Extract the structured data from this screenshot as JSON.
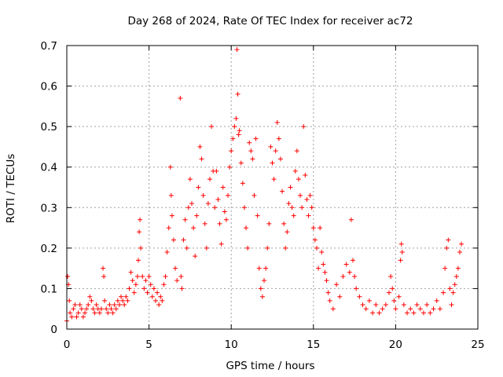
{
  "chart_data": {
    "type": "scatter",
    "title": "Day 268 of 2024, Rate Of TEC Index for receiver ac72",
    "xlabel": "GPS time / hours",
    "ylabel": "ROTI / TECUs",
    "xlim": [
      0,
      25
    ],
    "ylim": [
      0,
      0.7
    ],
    "xticks": [
      "0",
      "5",
      "10",
      "15",
      "20",
      "25"
    ],
    "yticks": [
      "0",
      "0.1",
      "0.2",
      "0.3",
      "0.4",
      "0.5",
      "0.6",
      "0.7"
    ],
    "grid": true,
    "marker": "+",
    "color": "#ff0000",
    "series": [
      {
        "points": [
          [
            0.0,
            0.02
          ],
          [
            0.05,
            0.13
          ],
          [
            0.1,
            0.11
          ],
          [
            0.15,
            0.07
          ],
          [
            0.2,
            0.04
          ],
          [
            0.3,
            0.03
          ],
          [
            0.4,
            0.05
          ],
          [
            0.5,
            0.06
          ],
          [
            0.6,
            0.03
          ],
          [
            0.7,
            0.04
          ],
          [
            0.8,
            0.06
          ],
          [
            0.9,
            0.05
          ],
          [
            1.0,
            0.03
          ],
          [
            1.1,
            0.04
          ],
          [
            1.2,
            0.05
          ],
          [
            1.3,
            0.06
          ],
          [
            1.4,
            0.08
          ],
          [
            1.5,
            0.07
          ],
          [
            1.6,
            0.05
          ],
          [
            1.7,
            0.04
          ],
          [
            1.8,
            0.06
          ],
          [
            1.9,
            0.05
          ],
          [
            2.0,
            0.04
          ],
          [
            2.1,
            0.05
          ],
          [
            2.2,
            0.15
          ],
          [
            2.25,
            0.13
          ],
          [
            2.3,
            0.07
          ],
          [
            2.4,
            0.05
          ],
          [
            2.5,
            0.04
          ],
          [
            2.6,
            0.06
          ],
          [
            2.7,
            0.05
          ],
          [
            2.8,
            0.04
          ],
          [
            2.9,
            0.06
          ],
          [
            3.0,
            0.05
          ],
          [
            3.1,
            0.07
          ],
          [
            3.2,
            0.06
          ],
          [
            3.3,
            0.08
          ],
          [
            3.4,
            0.07
          ],
          [
            3.5,
            0.06
          ],
          [
            3.6,
            0.08
          ],
          [
            3.7,
            0.07
          ],
          [
            3.8,
            0.1
          ],
          [
            3.9,
            0.14
          ],
          [
            4.0,
            0.12
          ],
          [
            4.1,
            0.09
          ],
          [
            4.2,
            0.11
          ],
          [
            4.3,
            0.13
          ],
          [
            4.35,
            0.17
          ],
          [
            4.4,
            0.24
          ],
          [
            4.45,
            0.27
          ],
          [
            4.5,
            0.2
          ],
          [
            4.6,
            0.13
          ],
          [
            4.7,
            0.1
          ],
          [
            4.8,
            0.12
          ],
          [
            4.9,
            0.09
          ],
          [
            5.0,
            0.13
          ],
          [
            5.1,
            0.11
          ],
          [
            5.2,
            0.08
          ],
          [
            5.3,
            0.1
          ],
          [
            5.4,
            0.07
          ],
          [
            5.5,
            0.09
          ],
          [
            5.6,
            0.06
          ],
          [
            5.7,
            0.08
          ],
          [
            5.8,
            0.07
          ],
          [
            5.9,
            0.11
          ],
          [
            6.0,
            0.13
          ],
          [
            6.1,
            0.19
          ],
          [
            6.2,
            0.25
          ],
          [
            6.3,
            0.4
          ],
          [
            6.35,
            0.33
          ],
          [
            6.4,
            0.28
          ],
          [
            6.5,
            0.22
          ],
          [
            6.6,
            0.15
          ],
          [
            6.7,
            0.12
          ],
          [
            6.9,
            0.57
          ],
          [
            6.95,
            0.13
          ],
          [
            7.0,
            0.1
          ],
          [
            7.1,
            0.22
          ],
          [
            7.2,
            0.27
          ],
          [
            7.3,
            0.2
          ],
          [
            7.4,
            0.3
          ],
          [
            7.5,
            0.37
          ],
          [
            7.6,
            0.31
          ],
          [
            7.7,
            0.25
          ],
          [
            7.8,
            0.18
          ],
          [
            7.9,
            0.28
          ],
          [
            8.0,
            0.35
          ],
          [
            8.1,
            0.45
          ],
          [
            8.2,
            0.42
          ],
          [
            8.3,
            0.33
          ],
          [
            8.4,
            0.26
          ],
          [
            8.5,
            0.2
          ],
          [
            8.6,
            0.31
          ],
          [
            8.7,
            0.37
          ],
          [
            8.8,
            0.5
          ],
          [
            8.9,
            0.39
          ],
          [
            9.0,
            0.3
          ],
          [
            9.1,
            0.39
          ],
          [
            9.2,
            0.32
          ],
          [
            9.3,
            0.26
          ],
          [
            9.4,
            0.21
          ],
          [
            9.5,
            0.35
          ],
          [
            9.6,
            0.29
          ],
          [
            9.7,
            0.27
          ],
          [
            9.8,
            0.33
          ],
          [
            9.9,
            0.4
          ],
          [
            10.0,
            0.44
          ],
          [
            10.1,
            0.47
          ],
          [
            10.2,
            0.5
          ],
          [
            10.3,
            0.52
          ],
          [
            10.35,
            0.69
          ],
          [
            10.4,
            0.58
          ],
          [
            10.45,
            0.48
          ],
          [
            10.5,
            0.49
          ],
          [
            10.6,
            0.41
          ],
          [
            10.7,
            0.36
          ],
          [
            10.8,
            0.3
          ],
          [
            10.9,
            0.25
          ],
          [
            11.0,
            0.2
          ],
          [
            11.1,
            0.46
          ],
          [
            11.2,
            0.44
          ],
          [
            11.3,
            0.42
          ],
          [
            11.4,
            0.33
          ],
          [
            11.5,
            0.47
          ],
          [
            11.6,
            0.28
          ],
          [
            11.7,
            0.15
          ],
          [
            11.8,
            0.1
          ],
          [
            11.9,
            0.08
          ],
          [
            12.0,
            0.12
          ],
          [
            12.1,
            0.15
          ],
          [
            12.2,
            0.2
          ],
          [
            12.3,
            0.26
          ],
          [
            12.4,
            0.45
          ],
          [
            12.5,
            0.41
          ],
          [
            12.6,
            0.37
          ],
          [
            12.7,
            0.44
          ],
          [
            12.8,
            0.51
          ],
          [
            12.9,
            0.47
          ],
          [
            13.0,
            0.42
          ],
          [
            13.1,
            0.34
          ],
          [
            13.2,
            0.26
          ],
          [
            13.3,
            0.2
          ],
          [
            13.4,
            0.24
          ],
          [
            13.5,
            0.31
          ],
          [
            13.6,
            0.35
          ],
          [
            13.7,
            0.3
          ],
          [
            13.8,
            0.28
          ],
          [
            13.9,
            0.39
          ],
          [
            14.0,
            0.44
          ],
          [
            14.1,
            0.37
          ],
          [
            14.2,
            0.33
          ],
          [
            14.3,
            0.3
          ],
          [
            14.4,
            0.5
          ],
          [
            14.5,
            0.38
          ],
          [
            14.6,
            0.32
          ],
          [
            14.7,
            0.28
          ],
          [
            14.8,
            0.33
          ],
          [
            14.9,
            0.3
          ],
          [
            15.0,
            0.25
          ],
          [
            15.1,
            0.22
          ],
          [
            15.2,
            0.2
          ],
          [
            15.3,
            0.15
          ],
          [
            15.4,
            0.25
          ],
          [
            15.5,
            0.19
          ],
          [
            15.6,
            0.16
          ],
          [
            15.7,
            0.14
          ],
          [
            15.8,
            0.12
          ],
          [
            15.9,
            0.09
          ],
          [
            16.0,
            0.07
          ],
          [
            16.2,
            0.05
          ],
          [
            16.4,
            0.11
          ],
          [
            16.6,
            0.08
          ],
          [
            16.8,
            0.13
          ],
          [
            17.0,
            0.16
          ],
          [
            17.2,
            0.14
          ],
          [
            17.3,
            0.27
          ],
          [
            17.4,
            0.17
          ],
          [
            17.5,
            0.13
          ],
          [
            17.6,
            0.1
          ],
          [
            17.8,
            0.08
          ],
          [
            18.0,
            0.06
          ],
          [
            18.2,
            0.05
          ],
          [
            18.4,
            0.07
          ],
          [
            18.6,
            0.04
          ],
          [
            18.8,
            0.06
          ],
          [
            19.0,
            0.04
          ],
          [
            19.2,
            0.05
          ],
          [
            19.4,
            0.06
          ],
          [
            19.6,
            0.09
          ],
          [
            19.7,
            0.13
          ],
          [
            19.8,
            0.1
          ],
          [
            19.9,
            0.07
          ],
          [
            20.0,
            0.05
          ],
          [
            20.2,
            0.08
          ],
          [
            20.3,
            0.17
          ],
          [
            20.35,
            0.21
          ],
          [
            20.4,
            0.19
          ],
          [
            20.5,
            0.06
          ],
          [
            20.7,
            0.04
          ],
          [
            20.9,
            0.05
          ],
          [
            21.1,
            0.04
          ],
          [
            21.3,
            0.06
          ],
          [
            21.5,
            0.05
          ],
          [
            21.7,
            0.04
          ],
          [
            21.9,
            0.06
          ],
          [
            22.1,
            0.04
          ],
          [
            22.3,
            0.05
          ],
          [
            22.5,
            0.07
          ],
          [
            22.7,
            0.05
          ],
          [
            22.9,
            0.09
          ],
          [
            23.0,
            0.15
          ],
          [
            23.1,
            0.2
          ],
          [
            23.2,
            0.22
          ],
          [
            23.3,
            0.1
          ],
          [
            23.4,
            0.06
          ],
          [
            23.5,
            0.09
          ],
          [
            23.6,
            0.11
          ],
          [
            23.7,
            0.13
          ],
          [
            23.8,
            0.15
          ],
          [
            23.9,
            0.19
          ],
          [
            24.0,
            0.21
          ]
        ]
      }
    ]
  }
}
